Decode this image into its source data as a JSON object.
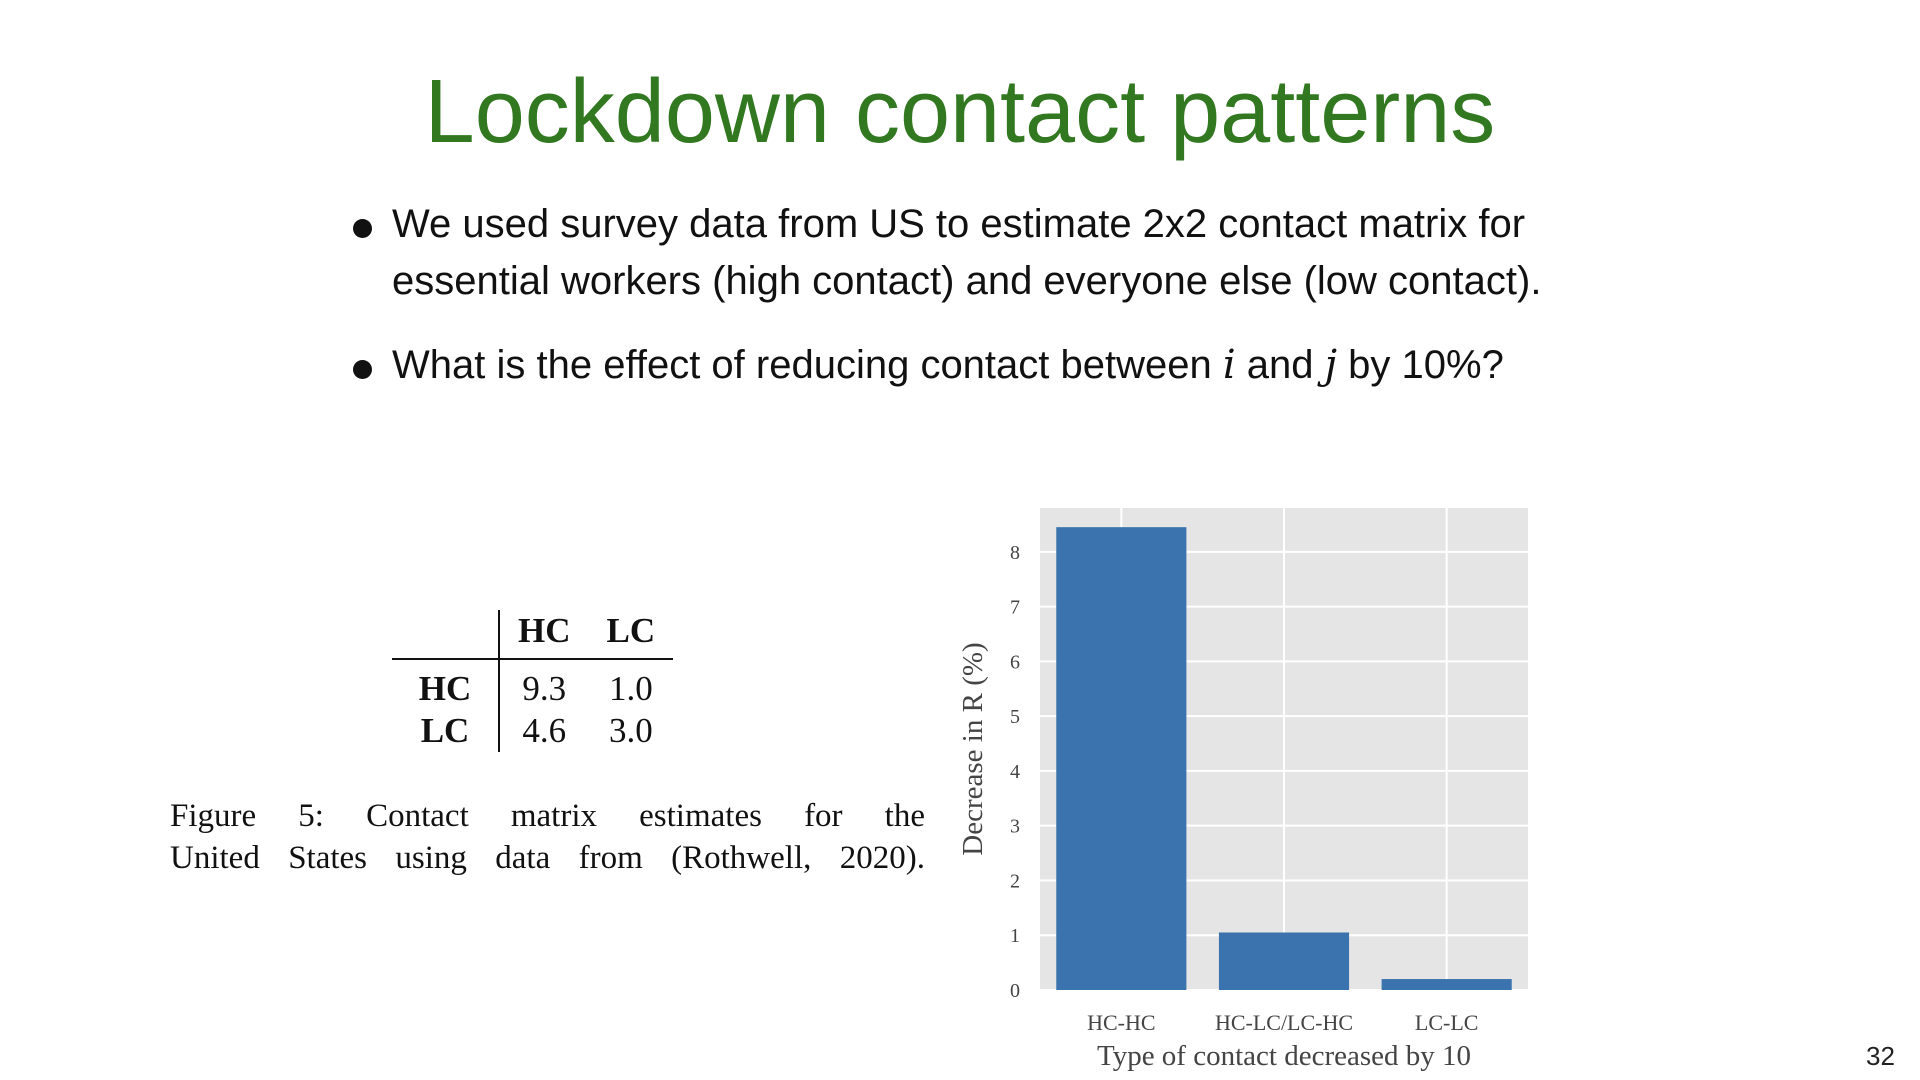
{
  "slide": {
    "title": "Lockdown contact patterns",
    "bullets": [
      {
        "text_before": "We used survey data from US to estimate 2x2 contact matrix for essential workers (high contact) and everyone else (low contact)."
      },
      {
        "text_before": "What is the effect of reducing contact between ",
        "var_i": "i",
        "text_mid": " and ",
        "var_j": "j",
        "text_after": " by 10%?"
      }
    ],
    "page_number": "32"
  },
  "contact_matrix": {
    "columns": [
      "HC",
      "LC"
    ],
    "rows": [
      {
        "label": "HC",
        "values": [
          "9.3",
          "1.0"
        ]
      },
      {
        "label": "LC",
        "values": [
          "4.6",
          "3.0"
        ]
      }
    ],
    "caption_line1": "Figure 5: Contact matrix estimates for the",
    "caption_line2": "United States using data from (Rothwell, 2020)."
  },
  "chart_data": {
    "type": "bar",
    "categories": [
      "HC-HC",
      "HC-LC/LC-HC",
      "LC-LC"
    ],
    "values": [
      8.45,
      1.05,
      0.2
    ],
    "xlabel": "Type of contact decreased by 10",
    "ylabel": "Decrease in R (%)",
    "ylim": [
      0,
      8.8
    ],
    "yticks": [
      0,
      1,
      2,
      3,
      4,
      5,
      6,
      7,
      8
    ],
    "grid": true,
    "bar_color": "#3a73ad",
    "plot_background": "#e5e5e5",
    "grid_color": "#ffffff"
  }
}
